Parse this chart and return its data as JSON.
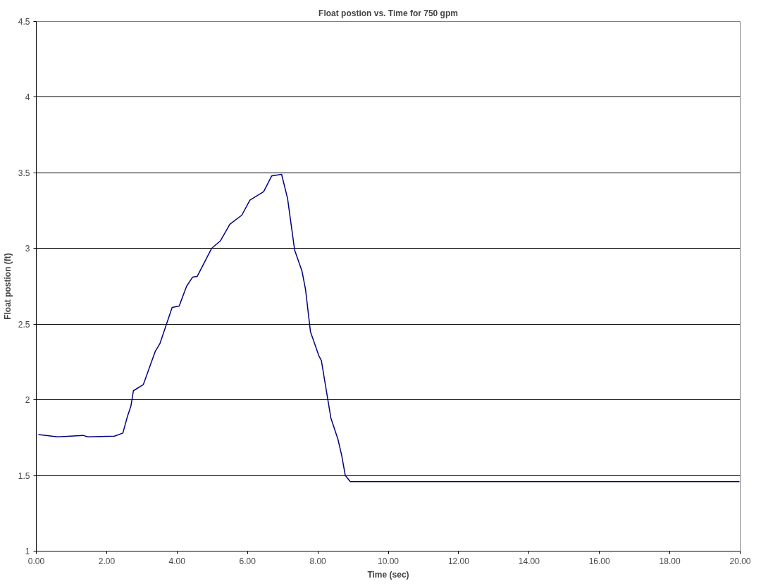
{
  "chart_data": {
    "type": "line",
    "title": "Float postion vs. Time for 750 gpm",
    "xlabel": "Time (sec)",
    "ylabel": "Float postion (ft)",
    "xlim": [
      0,
      20
    ],
    "ylim": [
      1,
      4.5
    ],
    "xticks": [
      {
        "value": 0,
        "label": "0.00"
      },
      {
        "value": 2,
        "label": "2.00"
      },
      {
        "value": 4,
        "label": "4.00"
      },
      {
        "value": 6,
        "label": "6.00"
      },
      {
        "value": 8,
        "label": "8.00"
      },
      {
        "value": 10,
        "label": "10.00"
      },
      {
        "value": 12,
        "label": "12.00"
      },
      {
        "value": 14,
        "label": "14.00"
      },
      {
        "value": 16,
        "label": "16.00"
      },
      {
        "value": 18,
        "label": "18.00"
      },
      {
        "value": 20,
        "label": "20.00"
      }
    ],
    "yticks": [
      1,
      1.5,
      2,
      2.5,
      3,
      3.5,
      4,
      4.5
    ],
    "grid": "y",
    "marker": "none",
    "line_style": "solid",
    "series": [
      {
        "color": "#000080",
        "x": [
          0.06,
          0.61,
          1.33,
          1.46,
          2.22,
          2.46,
          2.59,
          2.69,
          2.76,
          3.04,
          3.38,
          3.51,
          3.86,
          4.06,
          4.27,
          4.44,
          4.57,
          4.98,
          5.23,
          5.5,
          5.84,
          6.07,
          6.46,
          6.69,
          6.97,
          7.14,
          7.34,
          7.55,
          7.65,
          7.79,
          8.03,
          8.1,
          8.37,
          8.57,
          8.68,
          8.78,
          8.92,
          10,
          12,
          14,
          16,
          18,
          19.98
        ],
        "values": [
          1.77,
          1.755,
          1.765,
          1.755,
          1.76,
          1.78,
          1.89,
          1.96,
          2.06,
          2.1,
          2.32,
          2.37,
          2.61,
          2.62,
          2.75,
          2.81,
          2.815,
          3.0,
          3.05,
          3.16,
          3.22,
          3.32,
          3.375,
          3.48,
          3.49,
          3.33,
          2.99,
          2.85,
          2.73,
          2.45,
          2.29,
          2.26,
          1.88,
          1.74,
          1.63,
          1.5,
          1.46,
          1.46,
          1.46,
          1.46,
          1.46,
          1.46,
          1.46
        ]
      }
    ]
  }
}
